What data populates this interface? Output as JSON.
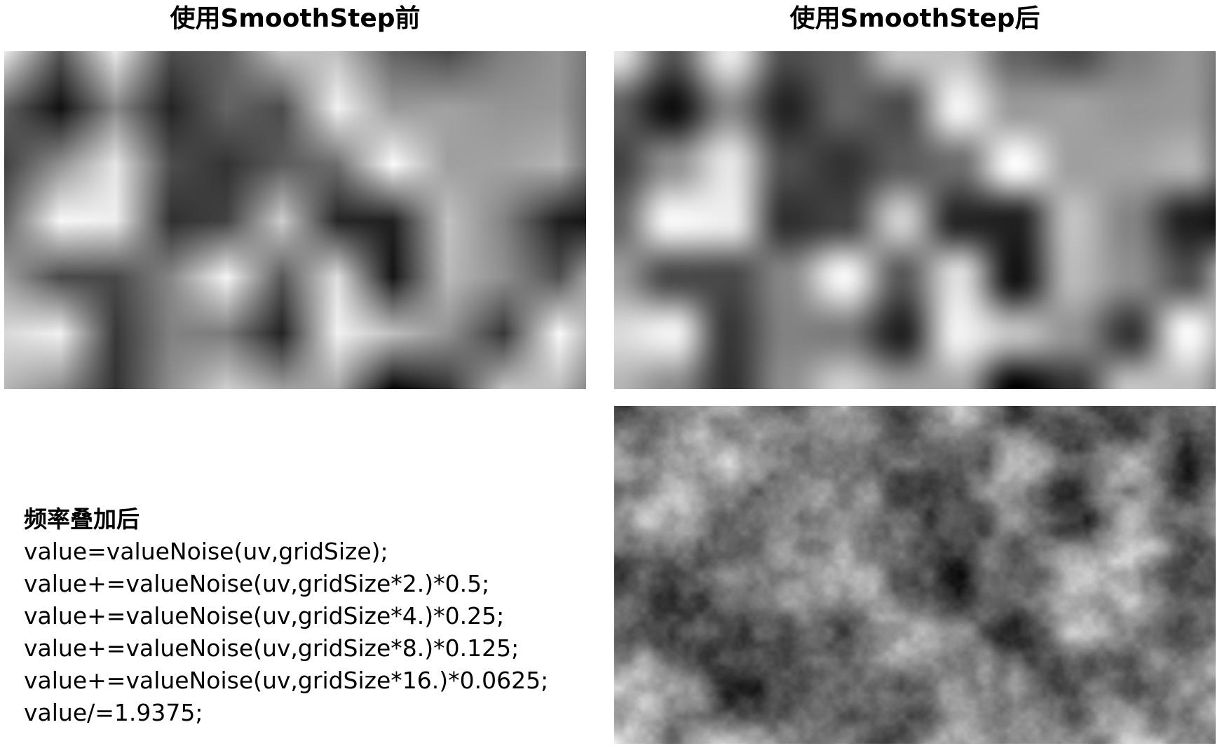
{
  "titles": {
    "before": "使用SmoothStep前",
    "after": "使用SmoothStep后"
  },
  "code": {
    "heading": "频率叠加后",
    "lines": [
      "value=valueNoise(uv,gridSize);",
      "value+=valueNoise(uv,gridSize*2.)*0.5;",
      "value+=valueNoise(uv,gridSize*4.)*0.25;",
      "value+=valueNoise(uv,gridSize*8.)*0.125;",
      "value+=valueNoise(uv,gridSize*16.)*0.0625;",
      "value/=1.9375;"
    ]
  },
  "images": {
    "before": "value-noise-linear",
    "after": "value-noise-smoothstep",
    "fbm": "value-noise-fractal"
  }
}
